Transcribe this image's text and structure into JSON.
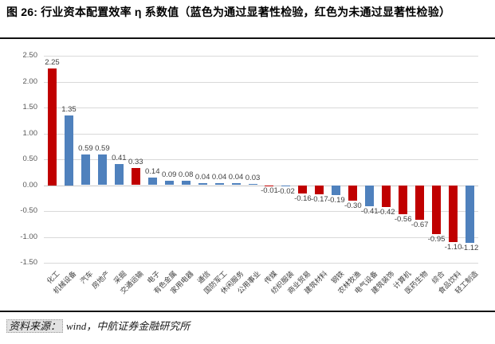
{
  "figure": {
    "title": "图 26: 行业资本配置效率 η 系数值（蓝色为通过显著性检验，红色为未通过显著性检验）",
    "source_label": "资料来源：",
    "source_text": "wind，中航证券金融研究所"
  },
  "colors": {
    "pass_blue": "#4f81bd",
    "fail_red": "#c00000",
    "gridline": "#d9d9d9",
    "axis_text": "#595959",
    "data_label_text": "#3f3f3f"
  },
  "chart_data": {
    "type": "bar",
    "title": "行业资本配置效率 η 系数值",
    "xlabel": "",
    "ylabel": "",
    "categories": [
      "化工",
      "机械设备",
      "汽车",
      "房地产",
      "采掘",
      "交通运输",
      "电子",
      "有色金属",
      "家用电器",
      "通信",
      "国防军工",
      "休闲服务",
      "公用事业",
      "传媒",
      "纺织服装",
      "商业贸易",
      "建筑材料",
      "钢铁",
      "农林牧渔",
      "电气设备",
      "建筑装饰",
      "计算机",
      "医药生物",
      "综合",
      "食品饮料",
      "轻工制造"
    ],
    "values": [
      2.25,
      1.35,
      0.59,
      0.59,
      0.41,
      0.33,
      0.14,
      0.09,
      0.08,
      0.04,
      0.04,
      0.04,
      0.03,
      -0.01,
      -0.02,
      -0.16,
      -0.17,
      -0.19,
      -0.3,
      -0.41,
      -0.42,
      -0.56,
      -0.67,
      -0.95,
      -1.1,
      -1.12
    ],
    "significant": [
      false,
      true,
      true,
      true,
      true,
      false,
      true,
      true,
      true,
      true,
      true,
      true,
      true,
      false,
      true,
      false,
      false,
      true,
      false,
      true,
      false,
      false,
      false,
      false,
      false,
      true
    ],
    "color_meaning": {
      "blue": "通过显著性检验",
      "red": "未通过显著性检验"
    },
    "ylim": [
      -1.5,
      2.5
    ],
    "ytick_interval": 0.5,
    "yticks": [
      "2.50",
      "2.00",
      "1.50",
      "1.00",
      "0.50",
      "0.00",
      "-0.50",
      "-1.00",
      "-1.50"
    ],
    "grid": true,
    "legend": "none",
    "data_labels": true
  }
}
